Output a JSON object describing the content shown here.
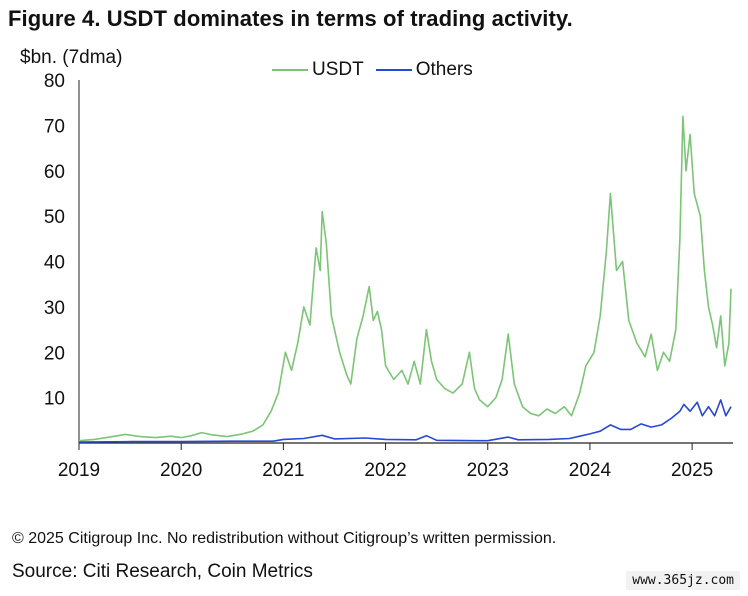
{
  "figure": {
    "title": "Figure 4. USDT dominates in terms of trading activity.",
    "unit_label": "$bn. (7dma)",
    "copyright": "© 2025 Citigroup Inc. No redistribution without Citigroup’s written permission.",
    "source": "Source: Citi Research, Coin Metrics",
    "watermark": "www.365jz.com"
  },
  "chart_data": {
    "type": "line",
    "title": "Figure 4. USDT dominates in terms of trading activity.",
    "ylabel": "$bn. (7dma)",
    "xlabel": "",
    "xlim": [
      2019.0,
      2025.4
    ],
    "ylim": [
      0,
      80
    ],
    "yticks": [
      10,
      20,
      30,
      40,
      50,
      60,
      70,
      80
    ],
    "xticks": [
      "2019",
      "2020",
      "2021",
      "2022",
      "2023",
      "2024",
      "2025"
    ],
    "grid": false,
    "legend": "top",
    "series": [
      {
        "name": "USDT",
        "color": "#7cc576",
        "points": [
          [
            2019.0,
            0.5
          ],
          [
            2019.15,
            0.8
          ],
          [
            2019.3,
            1.3
          ],
          [
            2019.45,
            1.9
          ],
          [
            2019.6,
            1.4
          ],
          [
            2019.75,
            1.2
          ],
          [
            2019.9,
            1.5
          ],
          [
            2020.0,
            1.2
          ],
          [
            2020.1,
            1.6
          ],
          [
            2020.2,
            2.3
          ],
          [
            2020.3,
            1.8
          ],
          [
            2020.45,
            1.4
          ],
          [
            2020.6,
            2.0
          ],
          [
            2020.7,
            2.6
          ],
          [
            2020.8,
            4.0
          ],
          [
            2020.88,
            7.0
          ],
          [
            2020.95,
            11.0
          ],
          [
            2021.02,
            20.0
          ],
          [
            2021.08,
            16.0
          ],
          [
            2021.14,
            22.0
          ],
          [
            2021.2,
            30.0
          ],
          [
            2021.26,
            26.0
          ],
          [
            2021.32,
            43.0
          ],
          [
            2021.36,
            38.0
          ],
          [
            2021.38,
            51.0
          ],
          [
            2021.42,
            44.0
          ],
          [
            2021.47,
            28.0
          ],
          [
            2021.55,
            20.0
          ],
          [
            2021.62,
            15.0
          ],
          [
            2021.66,
            13.0
          ],
          [
            2021.72,
            23.0
          ],
          [
            2021.78,
            28.0
          ],
          [
            2021.84,
            34.5
          ],
          [
            2021.88,
            27.0
          ],
          [
            2021.92,
            29.0
          ],
          [
            2021.96,
            25.0
          ],
          [
            2022.0,
            17.0
          ],
          [
            2022.08,
            14.0
          ],
          [
            2022.16,
            16.0
          ],
          [
            2022.22,
            13.0
          ],
          [
            2022.28,
            18.0
          ],
          [
            2022.34,
            13.0
          ],
          [
            2022.4,
            25.0
          ],
          [
            2022.45,
            18.0
          ],
          [
            2022.5,
            14.0
          ],
          [
            2022.58,
            12.0
          ],
          [
            2022.66,
            11.0
          ],
          [
            2022.75,
            13.0
          ],
          [
            2022.82,
            20.0
          ],
          [
            2022.87,
            12.0
          ],
          [
            2022.92,
            9.5
          ],
          [
            2023.0,
            8.0
          ],
          [
            2023.08,
            10.0
          ],
          [
            2023.14,
            14.0
          ],
          [
            2023.2,
            24.0
          ],
          [
            2023.26,
            13.0
          ],
          [
            2023.34,
            8.0
          ],
          [
            2023.42,
            6.5
          ],
          [
            2023.5,
            6.0
          ],
          [
            2023.58,
            7.5
          ],
          [
            2023.66,
            6.5
          ],
          [
            2023.75,
            8.0
          ],
          [
            2023.82,
            6.0
          ],
          [
            2023.9,
            11.0
          ],
          [
            2023.96,
            17.0
          ],
          [
            2024.04,
            20.0
          ],
          [
            2024.1,
            28.0
          ],
          [
            2024.16,
            42.0
          ],
          [
            2024.2,
            55.0
          ],
          [
            2024.26,
            38.0
          ],
          [
            2024.32,
            40.0
          ],
          [
            2024.38,
            27.0
          ],
          [
            2024.46,
            22.0
          ],
          [
            2024.54,
            19.0
          ],
          [
            2024.6,
            24.0
          ],
          [
            2024.66,
            16.0
          ],
          [
            2024.72,
            20.0
          ],
          [
            2024.78,
            18.0
          ],
          [
            2024.84,
            25.0
          ],
          [
            2024.88,
            45.0
          ],
          [
            2024.91,
            72.0
          ],
          [
            2024.94,
            60.0
          ],
          [
            2024.98,
            68.0
          ],
          [
            2025.02,
            55.0
          ],
          [
            2025.08,
            50.0
          ],
          [
            2025.12,
            38.0
          ],
          [
            2025.16,
            30.0
          ],
          [
            2025.2,
            26.0
          ],
          [
            2025.24,
            21.0
          ],
          [
            2025.28,
            28.0
          ],
          [
            2025.32,
            17.0
          ],
          [
            2025.36,
            22.0
          ],
          [
            2025.38,
            34.0
          ]
        ]
      },
      {
        "name": "Others",
        "color": "#2747d8",
        "points": [
          [
            2019.0,
            0.2
          ],
          [
            2019.5,
            0.3
          ],
          [
            2020.0,
            0.3
          ],
          [
            2020.5,
            0.4
          ],
          [
            2020.9,
            0.4
          ],
          [
            2021.0,
            0.8
          ],
          [
            2021.2,
            1.0
          ],
          [
            2021.38,
            1.7
          ],
          [
            2021.5,
            0.9
          ],
          [
            2021.8,
            1.1
          ],
          [
            2022.0,
            0.8
          ],
          [
            2022.3,
            0.7
          ],
          [
            2022.4,
            1.6
          ],
          [
            2022.5,
            0.6
          ],
          [
            2022.9,
            0.5
          ],
          [
            2023.0,
            0.5
          ],
          [
            2023.2,
            1.3
          ],
          [
            2023.3,
            0.7
          ],
          [
            2023.6,
            0.8
          ],
          [
            2023.8,
            1.0
          ],
          [
            2023.9,
            1.5
          ],
          [
            2024.0,
            2.0
          ],
          [
            2024.1,
            2.6
          ],
          [
            2024.2,
            4.0
          ],
          [
            2024.3,
            3.0
          ],
          [
            2024.4,
            3.0
          ],
          [
            2024.5,
            4.2
          ],
          [
            2024.6,
            3.5
          ],
          [
            2024.7,
            4.0
          ],
          [
            2024.8,
            5.5
          ],
          [
            2024.88,
            7.0
          ],
          [
            2024.92,
            8.5
          ],
          [
            2024.98,
            7.0
          ],
          [
            2025.05,
            9.0
          ],
          [
            2025.1,
            6.0
          ],
          [
            2025.16,
            8.0
          ],
          [
            2025.22,
            6.0
          ],
          [
            2025.28,
            9.5
          ],
          [
            2025.33,
            6.0
          ],
          [
            2025.38,
            8.0
          ]
        ]
      }
    ]
  }
}
